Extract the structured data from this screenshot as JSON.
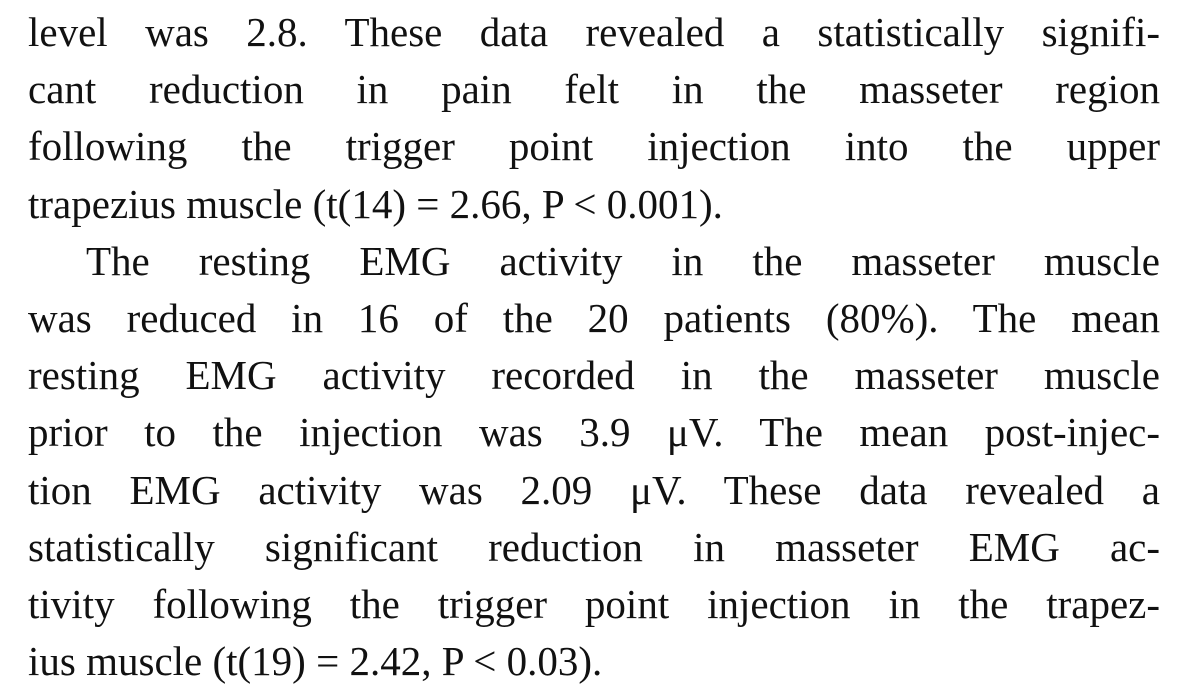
{
  "paragraphs": [
    {
      "lines": [
        "level was 2.8. These data revealed a statistically signifi-",
        "cant reduction in pain felt in the masseter region",
        "following the trigger point injection into the upper",
        "trapezius muscle (t(14) = 2.66, P < 0.001)."
      ]
    },
    {
      "lines": [
        "The resting EMG activity in the masseter muscle",
        "was reduced in 16 of the 20 patients (80%). The mean",
        "resting EMG activity recorded in the masseter muscle",
        "prior to the injection was 3.9 μV. The mean post-injec-",
        "tion EMG activity was 2.09 μV. These data revealed a",
        "statistically significant reduction in masseter EMG ac-",
        "tivity following the trigger point injection in the trapez-",
        "ius muscle (t(19) = 2.42, P < 0.03)."
      ]
    }
  ]
}
